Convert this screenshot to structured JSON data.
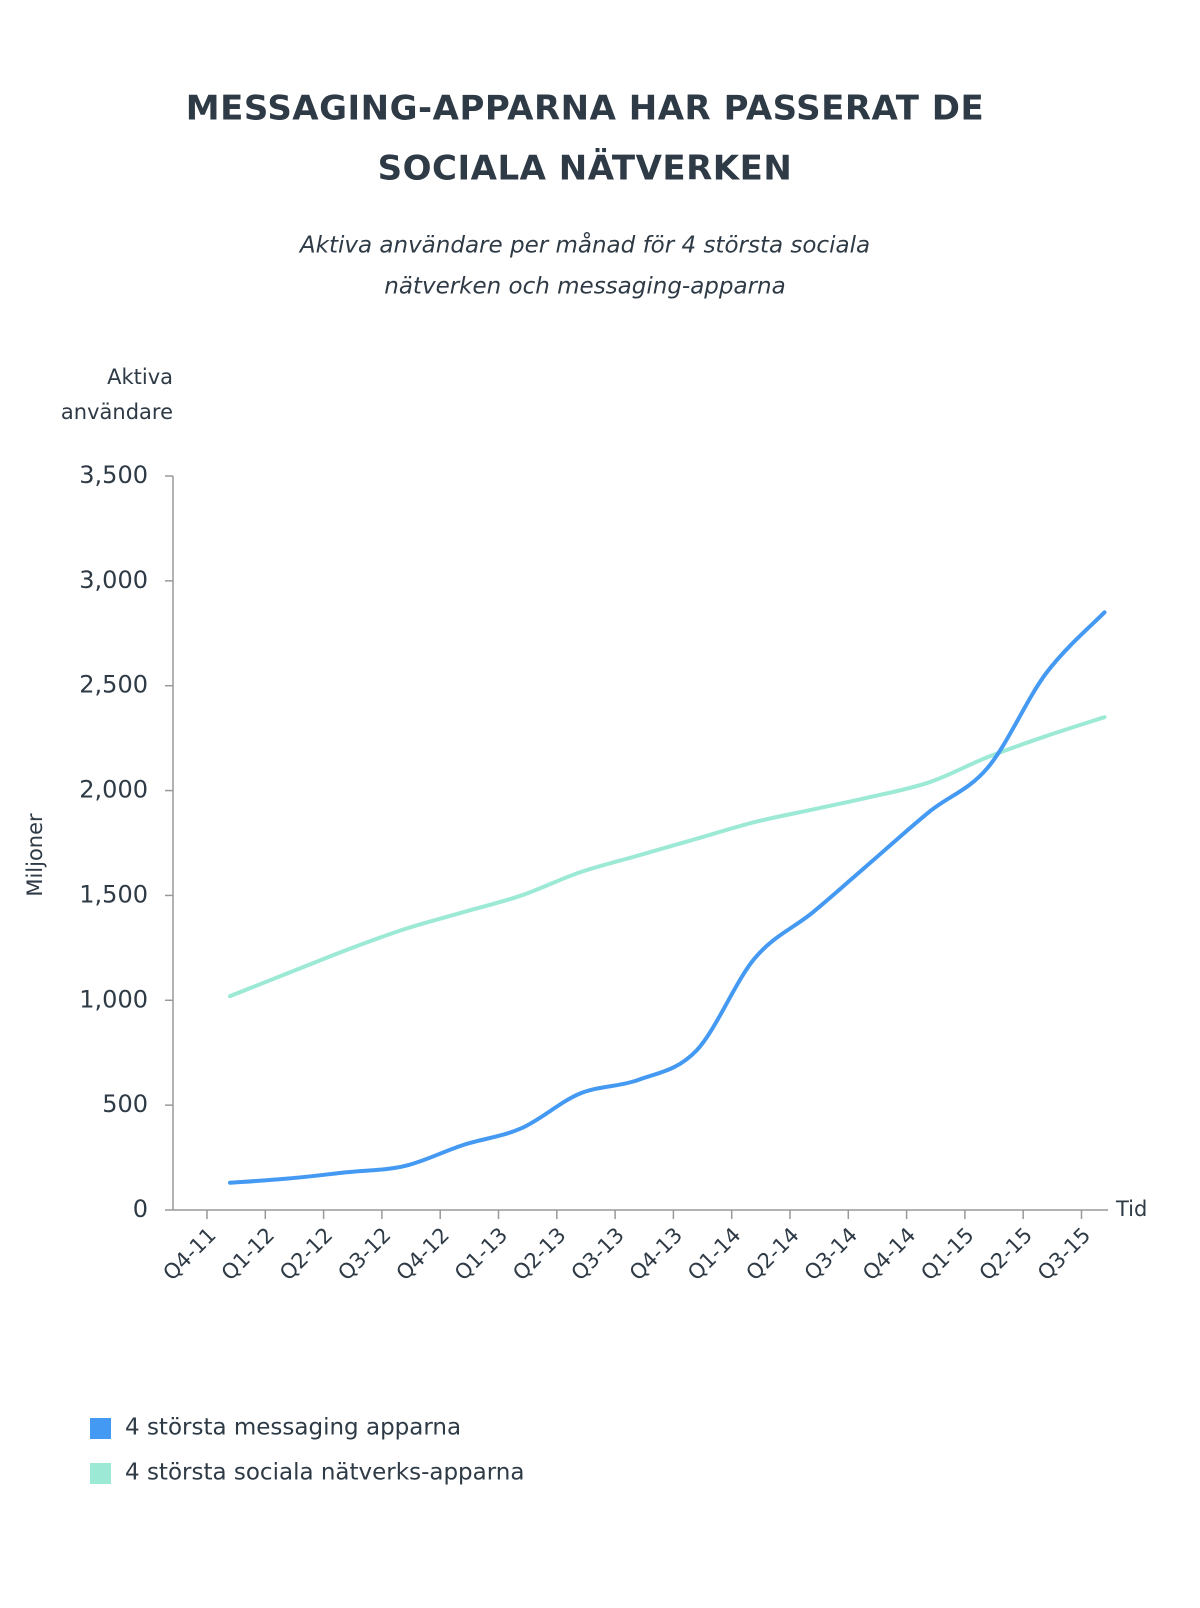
{
  "chart_data": {
    "type": "line",
    "title": [
      "MESSAGING-APPARNA HAR PASSERAT DE",
      "SOCIALA NÄTVERKEN"
    ],
    "subtitle": [
      "Aktiva användare per månad för 4 största sociala",
      "nätverken och messaging-apparna"
    ],
    "y_label_top": [
      "Aktiva",
      "användare"
    ],
    "y_label": "Miljoner",
    "x_label": "Tid",
    "categories": [
      "Q4-11",
      "Q1-12",
      "Q2-12",
      "Q3-12",
      "Q4-12",
      "Q1-13",
      "Q2-13",
      "Q3-13",
      "Q4-13",
      "Q1-14",
      "Q2-14",
      "Q3-14",
      "Q4-14",
      "Q1-15",
      "Q2-15",
      "Q3-15"
    ],
    "series": [
      {
        "name": "4 största messaging apparna",
        "color": "#4499f2",
        "values": [
          130,
          150,
          180,
          210,
          310,
          390,
          555,
          620,
          760,
          1200,
          1420,
          1660,
          1900,
          2110,
          2560,
          2850
        ]
      },
      {
        "name": "4 största sociala nätverks-apparna",
        "color": "#9ce9d6",
        "values": [
          1020,
          1130,
          1240,
          1340,
          1420,
          1500,
          1610,
          1690,
          1770,
          1850,
          1910,
          1970,
          2040,
          2160,
          2260,
          2350
        ]
      }
    ],
    "ylim": [
      0,
      3500
    ],
    "yticks": [
      0,
      {
        "value": 500,
        "label": "500"
      },
      {
        "value": 1000,
        "label": "1,000"
      },
      {
        "value": 1500,
        "label": "1,500"
      },
      {
        "value": 2000,
        "label": "2,000"
      },
      {
        "value": 2500,
        "label": "2,500"
      },
      {
        "value": 3000,
        "label": "3,000"
      },
      {
        "value": 3500,
        "label": "3,500"
      }
    ]
  }
}
